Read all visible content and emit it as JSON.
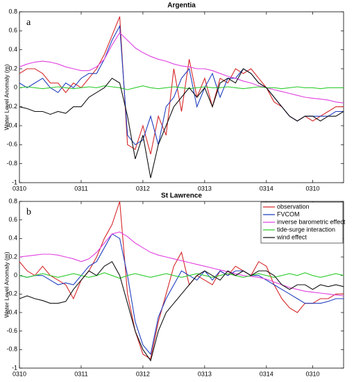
{
  "chart_data": [
    {
      "type": "line",
      "title": "Argentia",
      "panel_label": "a",
      "ylabel": "Water Level Anomaly (m)",
      "x": [
        0,
        0.125,
        0.25,
        0.375,
        0.5,
        0.625,
        0.75,
        0.875,
        1,
        1.125,
        1.25,
        1.375,
        1.5,
        1.625,
        1.75,
        1.875,
        2,
        2.125,
        2.25,
        2.375,
        2.5,
        2.625,
        2.75,
        2.875,
        3,
        3.125,
        3.25,
        3.375,
        3.5,
        3.625,
        3.75,
        3.875,
        4,
        4.125,
        4.25,
        4.375,
        4.5,
        4.625,
        4.75,
        4.875,
        5,
        5.125,
        5.25
      ],
      "xlim": [
        0,
        5.25
      ],
      "xticks": [
        {
          "value": 0,
          "label": "0310"
        },
        {
          "value": 1,
          "label": "0311"
        },
        {
          "value": 2,
          "label": "0312"
        },
        {
          "value": 3,
          "label": "0313"
        },
        {
          "value": 4,
          "label": "0314"
        },
        {
          "value": 4.75,
          "label": "0310"
        }
      ],
      "ylim": [
        -1,
        0.8
      ],
      "yticks": [
        -1,
        -0.8,
        -0.6,
        -0.4,
        -0.2,
        0,
        0.2,
        0.4,
        0.6,
        0.8
      ],
      "series": [
        {
          "color": "#d62728",
          "values": [
            0.15,
            0.2,
            0.2,
            0.15,
            0.05,
            0.05,
            -0.05,
            0.05,
            0.0,
            0.1,
            0.2,
            0.35,
            0.55,
            0.75,
            -0.6,
            -0.65,
            -0.4,
            -0.7,
            -0.3,
            -0.5,
            0.2,
            -0.25,
            0.3,
            -0.1,
            0.1,
            -0.2,
            0.1,
            0.05,
            0.2,
            0.15,
            0.2,
            0.1,
            0.0,
            -0.15,
            -0.2,
            -0.3,
            -0.35,
            -0.3,
            -0.35,
            -0.3,
            -0.25,
            -0.2,
            -0.2
          ]
        },
        {
          "color": "#1f3fbf",
          "values": [
            0.05,
            0.0,
            0.05,
            0.1,
            0.0,
            -0.05,
            0.05,
            0.0,
            0.1,
            0.15,
            0.15,
            0.3,
            0.5,
            0.65,
            -0.5,
            -0.6,
            -0.55,
            -0.3,
            -0.6,
            -0.2,
            -0.1,
            0.1,
            0.2,
            -0.2,
            0.0,
            0.15,
            -0.1,
            0.1,
            0.1,
            0.2,
            0.15,
            0.05,
            0.0,
            -0.1,
            -0.2,
            -0.3,
            -0.35,
            -0.3,
            -0.3,
            -0.3,
            -0.3,
            -0.25,
            -0.25
          ]
        },
        {
          "color": "#e040e0",
          "values": [
            0.22,
            0.25,
            0.27,
            0.28,
            0.27,
            0.25,
            0.22,
            0.2,
            0.18,
            0.18,
            0.22,
            0.3,
            0.45,
            0.58,
            0.5,
            0.42,
            0.37,
            0.33,
            0.3,
            0.28,
            0.25,
            0.23,
            0.22,
            0.2,
            0.2,
            0.18,
            0.15,
            0.12,
            0.1,
            0.07,
            0.05,
            0.02,
            0.0,
            -0.02,
            -0.04,
            -0.06,
            -0.08,
            -0.1,
            -0.11,
            -0.12,
            -0.13,
            -0.15,
            -0.16
          ]
        },
        {
          "color": "#2ecc2e",
          "values": [
            0.0,
            0.01,
            0.0,
            -0.01,
            0.0,
            0.01,
            0.0,
            -0.01,
            0.0,
            0.01,
            0.0,
            0.02,
            0.01,
            0.0,
            -0.02,
            0.0,
            0.02,
            0.0,
            -0.01,
            0.0,
            0.01,
            0.0,
            -0.01,
            0.0,
            0.01,
            0.0,
            0.0,
            0.01,
            0.0,
            -0.01,
            0.0,
            0.01,
            0.0,
            0.0,
            -0.01,
            0.0,
            0.01,
            0.0,
            0.0,
            -0.01,
            0.0,
            0.0,
            0.0
          ]
        },
        {
          "color": "#111111",
          "values": [
            -0.2,
            -0.22,
            -0.25,
            -0.25,
            -0.28,
            -0.25,
            -0.27,
            -0.2,
            -0.2,
            -0.1,
            -0.05,
            0.0,
            0.1,
            0.05,
            -0.3,
            -0.75,
            -0.5,
            -0.95,
            -0.6,
            -0.4,
            -0.2,
            -0.1,
            0.0,
            -0.1,
            0.0,
            -0.2,
            0.05,
            0.1,
            0.05,
            0.2,
            0.15,
            0.05,
            0.0,
            -0.1,
            -0.2,
            -0.3,
            -0.35,
            -0.3,
            -0.3,
            -0.35,
            -0.3,
            -0.3,
            -0.25
          ]
        }
      ]
    },
    {
      "type": "line",
      "title": "St Lawrence",
      "panel_label": "b",
      "ylabel": "Water Level Anomaly (m)",
      "x": [
        0,
        0.125,
        0.25,
        0.375,
        0.5,
        0.625,
        0.75,
        0.875,
        1,
        1.125,
        1.25,
        1.375,
        1.5,
        1.625,
        1.75,
        1.875,
        2,
        2.125,
        2.25,
        2.375,
        2.5,
        2.625,
        2.75,
        2.875,
        3,
        3.125,
        3.25,
        3.375,
        3.5,
        3.625,
        3.75,
        3.875,
        4,
        4.125,
        4.25,
        4.375,
        4.5,
        4.625,
        4.75,
        4.875,
        5,
        5.125,
        5.25
      ],
      "xlim": [
        0,
        5.25
      ],
      "xticks": [
        {
          "value": 0,
          "label": "0310"
        },
        {
          "value": 1,
          "label": "0311"
        },
        {
          "value": 2,
          "label": "0312"
        },
        {
          "value": 3,
          "label": "0313"
        },
        {
          "value": 4,
          "label": "0314"
        },
        {
          "value": 4.75,
          "label": "0310"
        }
      ],
      "ylim": [
        -1,
        0.8
      ],
      "yticks": [
        -1,
        -0.8,
        -0.6,
        -0.4,
        -0.2,
        0,
        0.2,
        0.4,
        0.6,
        0.8
      ],
      "legend": "upper right",
      "series": [
        {
          "name": "observation",
          "color": "#d62728",
          "values": [
            0.15,
            0.05,
            0.0,
            0.1,
            0.0,
            -0.05,
            -0.1,
            -0.25,
            -0.05,
            0.05,
            0.2,
            0.4,
            0.55,
            0.8,
            -0.2,
            -0.6,
            -0.85,
            -0.9,
            -0.5,
            -0.2,
            0.1,
            0.25,
            -0.1,
            0.0,
            -0.05,
            -0.1,
            0.05,
            0.0,
            0.1,
            0.05,
            0.0,
            0.15,
            0.1,
            -0.1,
            -0.25,
            -0.35,
            -0.4,
            -0.3,
            -0.3,
            -0.25,
            -0.25,
            -0.2,
            -0.2
          ]
        },
        {
          "name": "FVCOM",
          "color": "#1f3fbf",
          "values": [
            0.0,
            -0.02,
            0.0,
            0.0,
            -0.05,
            -0.1,
            -0.08,
            -0.1,
            0.0,
            0.1,
            0.15,
            0.3,
            0.45,
            0.4,
            0.0,
            -0.5,
            -0.75,
            -0.85,
            -0.45,
            -0.25,
            -0.1,
            0.05,
            0.0,
            -0.05,
            0.05,
            -0.05,
            0.05,
            0.0,
            0.05,
            0.05,
            0.0,
            0.0,
            -0.05,
            -0.1,
            -0.15,
            -0.2,
            -0.25,
            -0.3,
            -0.3,
            -0.3,
            -0.28,
            -0.25,
            -0.25
          ]
        },
        {
          "name": "inverse barometric effect",
          "color": "#e040e0",
          "values": [
            0.2,
            0.21,
            0.22,
            0.23,
            0.23,
            0.22,
            0.2,
            0.18,
            0.15,
            0.18,
            0.25,
            0.35,
            0.45,
            0.47,
            0.42,
            0.35,
            0.3,
            0.25,
            0.22,
            0.2,
            0.18,
            0.16,
            0.14,
            0.12,
            0.1,
            0.08,
            0.06,
            0.04,
            0.02,
            0.0,
            -0.01,
            -0.02,
            -0.04,
            -0.07,
            -0.1,
            -0.13,
            -0.15,
            -0.17,
            -0.18,
            -0.19,
            -0.2,
            -0.21,
            -0.22
          ]
        },
        {
          "name": "tide-surge interaction",
          "color": "#2ecc2e",
          "values": [
            0.0,
            -0.02,
            0.0,
            0.02,
            0.0,
            -0.02,
            0.0,
            0.02,
            0.0,
            -0.02,
            0.0,
            0.03,
            0.0,
            -0.03,
            0.0,
            0.02,
            0.0,
            -0.02,
            0.0,
            0.02,
            0.0,
            -0.02,
            0.0,
            0.02,
            0.0,
            -0.02,
            0.0,
            0.02,
            0.0,
            -0.02,
            0.0,
            0.02,
            0.0,
            -0.02,
            0.0,
            0.02,
            0.0,
            0.03,
            0.0,
            -0.02,
            0.0,
            0.02,
            0.0
          ]
        },
        {
          "name": "wind effect",
          "color": "#111111",
          "values": [
            -0.25,
            -0.22,
            -0.25,
            -0.27,
            -0.3,
            -0.3,
            -0.28,
            -0.15,
            -0.05,
            0.05,
            0.0,
            0.1,
            0.15,
            0.0,
            -0.3,
            -0.6,
            -0.8,
            -0.92,
            -0.6,
            -0.4,
            -0.3,
            -0.2,
            -0.1,
            0.0,
            0.05,
            0.0,
            -0.05,
            0.05,
            0.0,
            0.05,
            0.0,
            0.05,
            0.05,
            0.0,
            -0.1,
            -0.15,
            -0.1,
            -0.1,
            -0.15,
            -0.1,
            -0.12,
            -0.1,
            -0.12
          ]
        }
      ]
    }
  ]
}
